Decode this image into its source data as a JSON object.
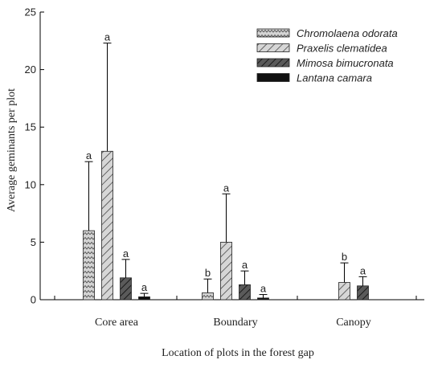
{
  "chart_data": {
    "type": "bar",
    "xlabel": "Location of plots in the forest gap",
    "ylabel": "Average geminants per plot",
    "ylim": [
      0,
      25
    ],
    "yticks": [
      0,
      5,
      10,
      15,
      20,
      25
    ],
    "categories": [
      "Core area",
      "Boundary",
      "Canopy"
    ],
    "legend_position": "top-right",
    "series": [
      {
        "name": "Chromolaena odorata",
        "pattern": "zigzag",
        "color": "#c8c8c8",
        "values": [
          6.0,
          0.6,
          null
        ],
        "errors": [
          6.0,
          1.2,
          null
        ],
        "labels": [
          "a",
          "b",
          ""
        ]
      },
      {
        "name": "Praxelis clematidea",
        "pattern": "diagonal-light",
        "color": "#cfcfcf",
        "values": [
          12.9,
          5.0,
          1.5
        ],
        "errors": [
          9.4,
          4.2,
          1.7
        ],
        "labels": [
          "a",
          "a",
          "b"
        ]
      },
      {
        "name": "Mimosa bimucronata",
        "pattern": "diagonal-dark",
        "color": "#555555",
        "values": [
          1.9,
          1.3,
          1.2
        ],
        "errors": [
          1.6,
          1.2,
          0.8
        ],
        "labels": [
          "a",
          "a",
          "a"
        ]
      },
      {
        "name": "Lantana camara",
        "pattern": "solid",
        "color": "#111111",
        "values": [
          0.25,
          0.15,
          null
        ],
        "errors": [
          0.3,
          0.3,
          null
        ],
        "labels": [
          "a",
          "a",
          ""
        ]
      }
    ]
  }
}
